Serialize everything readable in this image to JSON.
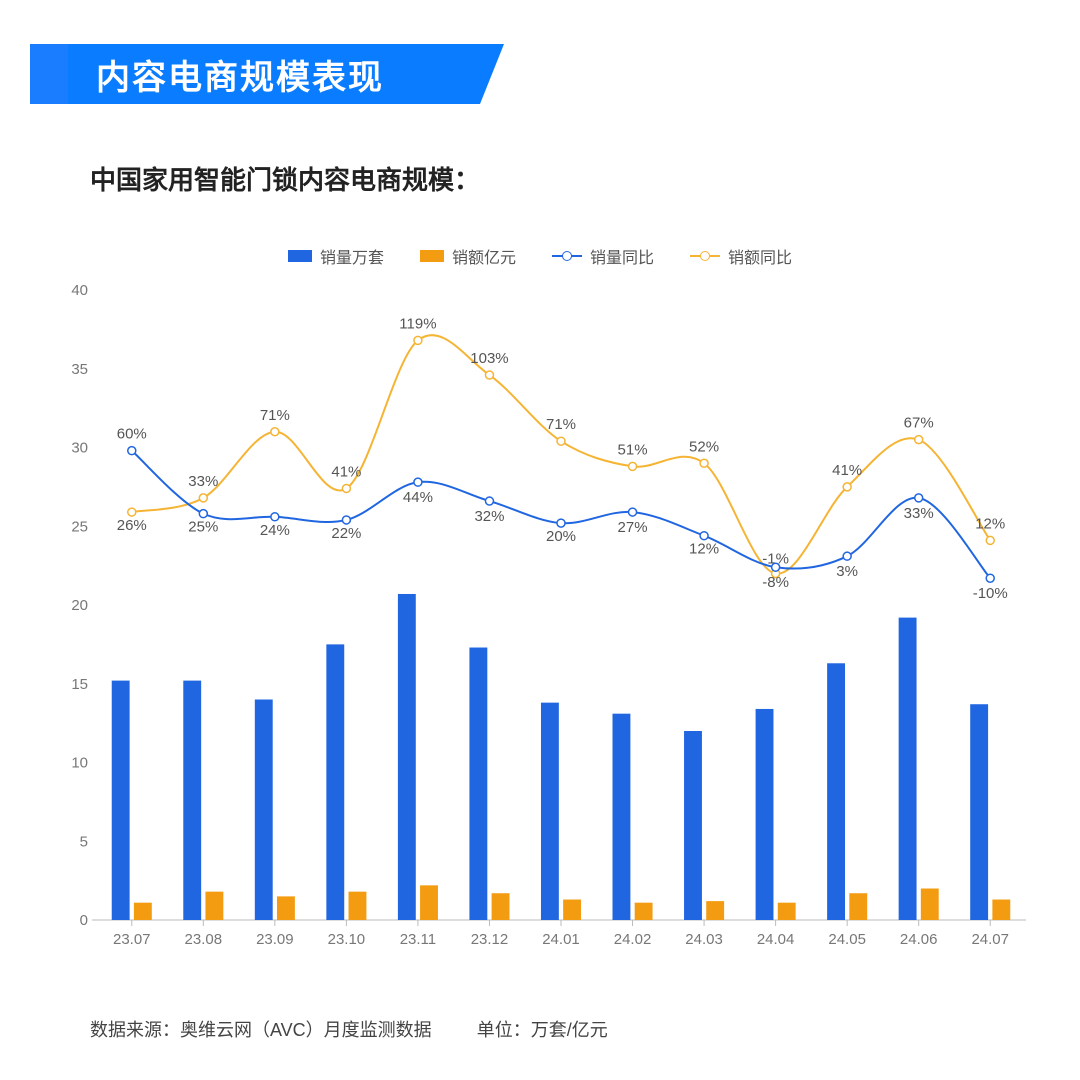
{
  "title": "内容电商规模表现",
  "subtitle": "中国家用智能门锁内容电商规模：",
  "footer_source": "数据来源：奥维云网（AVC）月度监测数据",
  "footer_unit": "单位：万套/亿元",
  "legend": {
    "bar_blue": "销量万套",
    "bar_orange": "销额亿元",
    "line_blue": "销量同比",
    "line_orange": "销额同比"
  },
  "colors": {
    "title_bg": "#0a7cff",
    "bar_blue": "#2066e0",
    "bar_orange": "#f39c12",
    "line_blue": "#2066e0",
    "line_orange": "#f5b433",
    "axis": "#bbbbbb",
    "text": "#555555",
    "bg": "#ffffff"
  },
  "chart": {
    "type": "bar+line",
    "categories": [
      "23.07",
      "23.08",
      "23.09",
      "23.10",
      "23.11",
      "23.12",
      "24.01",
      "24.02",
      "24.03",
      "24.04",
      "24.05",
      "24.06",
      "24.07"
    ],
    "bars_blue": [
      15.2,
      15.2,
      14.0,
      17.5,
      20.7,
      17.3,
      13.8,
      13.1,
      12.0,
      13.4,
      16.3,
      19.2,
      13.7
    ],
    "bars_orange": [
      1.1,
      1.8,
      1.5,
      1.8,
      2.2,
      1.7,
      1.3,
      1.1,
      1.2,
      1.1,
      1.7,
      2.0,
      1.3
    ],
    "line_blue_values": [
      60,
      25,
      24,
      22,
      44,
      32,
      20,
      27,
      12,
      -8,
      3,
      33,
      -10
    ],
    "line_orange_values": [
      26,
      33,
      71,
      41,
      119,
      103,
      71,
      51,
      52,
      -1,
      41,
      67,
      12
    ],
    "line_blue_y": [
      29.8,
      25.8,
      25.6,
      25.4,
      27.8,
      26.6,
      25.2,
      25.9,
      24.4,
      22.4,
      23.1,
      26.8,
      21.7
    ],
    "line_orange_y": [
      25.9,
      26.8,
      31.0,
      27.4,
      36.8,
      34.6,
      30.4,
      28.8,
      29.0,
      22.0,
      27.5,
      30.5,
      24.1
    ],
    "line_blue_labels": [
      "60%",
      "25%",
      "24%",
      "22%",
      "44%",
      "32%",
      "20%",
      "27%",
      "12%",
      "-8%",
      "3%",
      "33%",
      "-10%"
    ],
    "line_orange_labels": [
      "26%",
      "33%",
      "71%",
      "41%",
      "119%",
      "103%",
      "71%",
      "51%",
      "52%",
      "-1%",
      "41%",
      "67%",
      "12%"
    ],
    "ylim": [
      0,
      40
    ],
    "ytick_step": 5,
    "bar_group_width": 0.56,
    "bar_gap": 0.06,
    "label_fontsize": 15,
    "tick_fontsize": 15
  }
}
